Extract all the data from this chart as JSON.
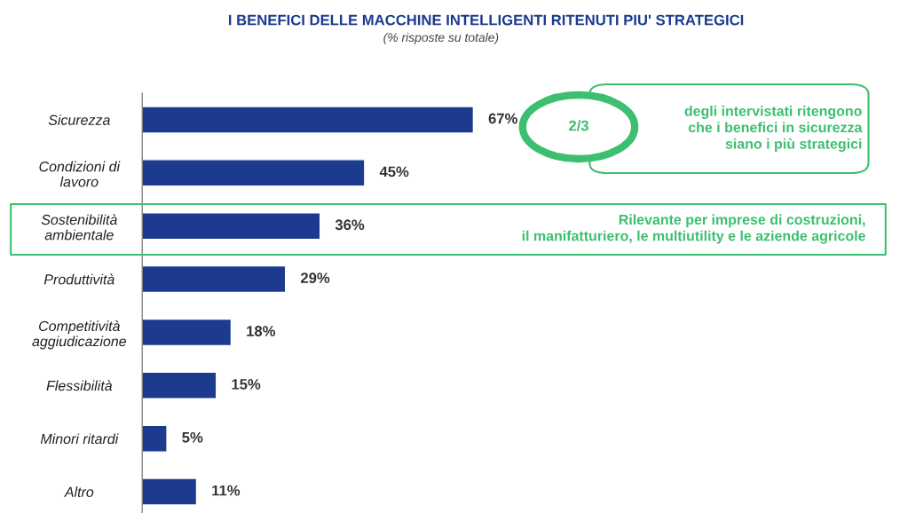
{
  "chart_data": {
    "type": "bar",
    "orientation": "horizontal",
    "title": "I BENEFICI DELLE MACCHINE INTELLIGENTI RITENUTI PIU' STRATEGICI",
    "subtitle": "(% risposte su totale)",
    "categories": [
      "Sicurezza",
      "Condizioni di\nlavoro",
      "Sostenibilità\nambientale",
      "Produttività",
      "Competitività\naggiudicazione",
      "Flessibilità",
      "Minori ritardi",
      "Altro"
    ],
    "values": [
      67,
      45,
      36,
      29,
      18,
      15,
      5,
      11
    ],
    "value_labels": [
      "67%",
      "45%",
      "36%",
      "29%",
      "18%",
      "15%",
      "5%",
      "11%"
    ],
    "color": "#1c3a8e",
    "tick_labels": "y",
    "grid": false,
    "legend": false,
    "annotations": [
      "2/3",
      "degli intervistati ritengono\nche i benefici in sicurezza\nsiano i più strategici",
      "Rilevante per imprese di costruzioni,\nil manifatturiero, le multiutility e le aziende agricole"
    ]
  }
}
